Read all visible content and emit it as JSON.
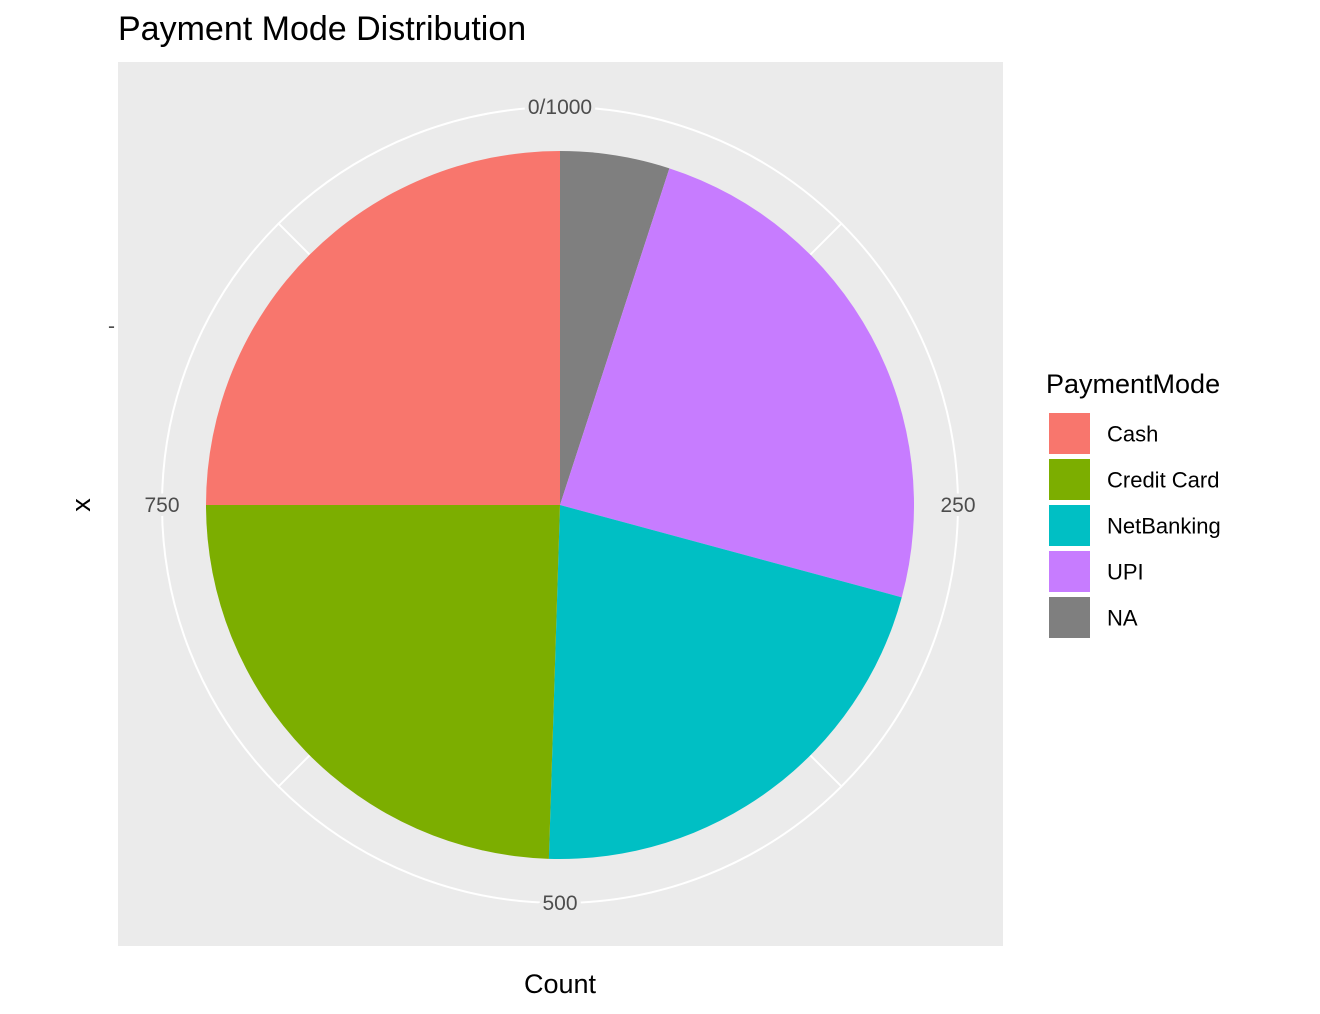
{
  "chart_data": {
    "type": "pie",
    "title": "Payment Mode Distribution",
    "xlabel": "Count",
    "ylabel": "x",
    "y_tick_label": "-",
    "legend_title": "PaymentMode",
    "legend_position": "right",
    "grid": true,
    "total": 1000,
    "theta_ticks": [
      {
        "value": 0,
        "label": "0/1000"
      },
      {
        "value": 250,
        "label": "250"
      },
      {
        "value": 500,
        "label": "500"
      },
      {
        "value": 750,
        "label": "750"
      }
    ],
    "theta_minor_ticks": [
      125,
      375,
      625,
      875
    ],
    "categories": [
      "Cash",
      "Credit Card",
      "NetBanking",
      "UPI",
      "NA"
    ],
    "values": [
      250,
      245,
      213,
      242,
      50
    ],
    "colors": [
      "#F8766D",
      "#7CAE00",
      "#00BFC4",
      "#C77CFF",
      "#7F7F7F"
    ],
    "panel_background": "#EBEBEB",
    "grid_color": "#FFFFFF"
  }
}
